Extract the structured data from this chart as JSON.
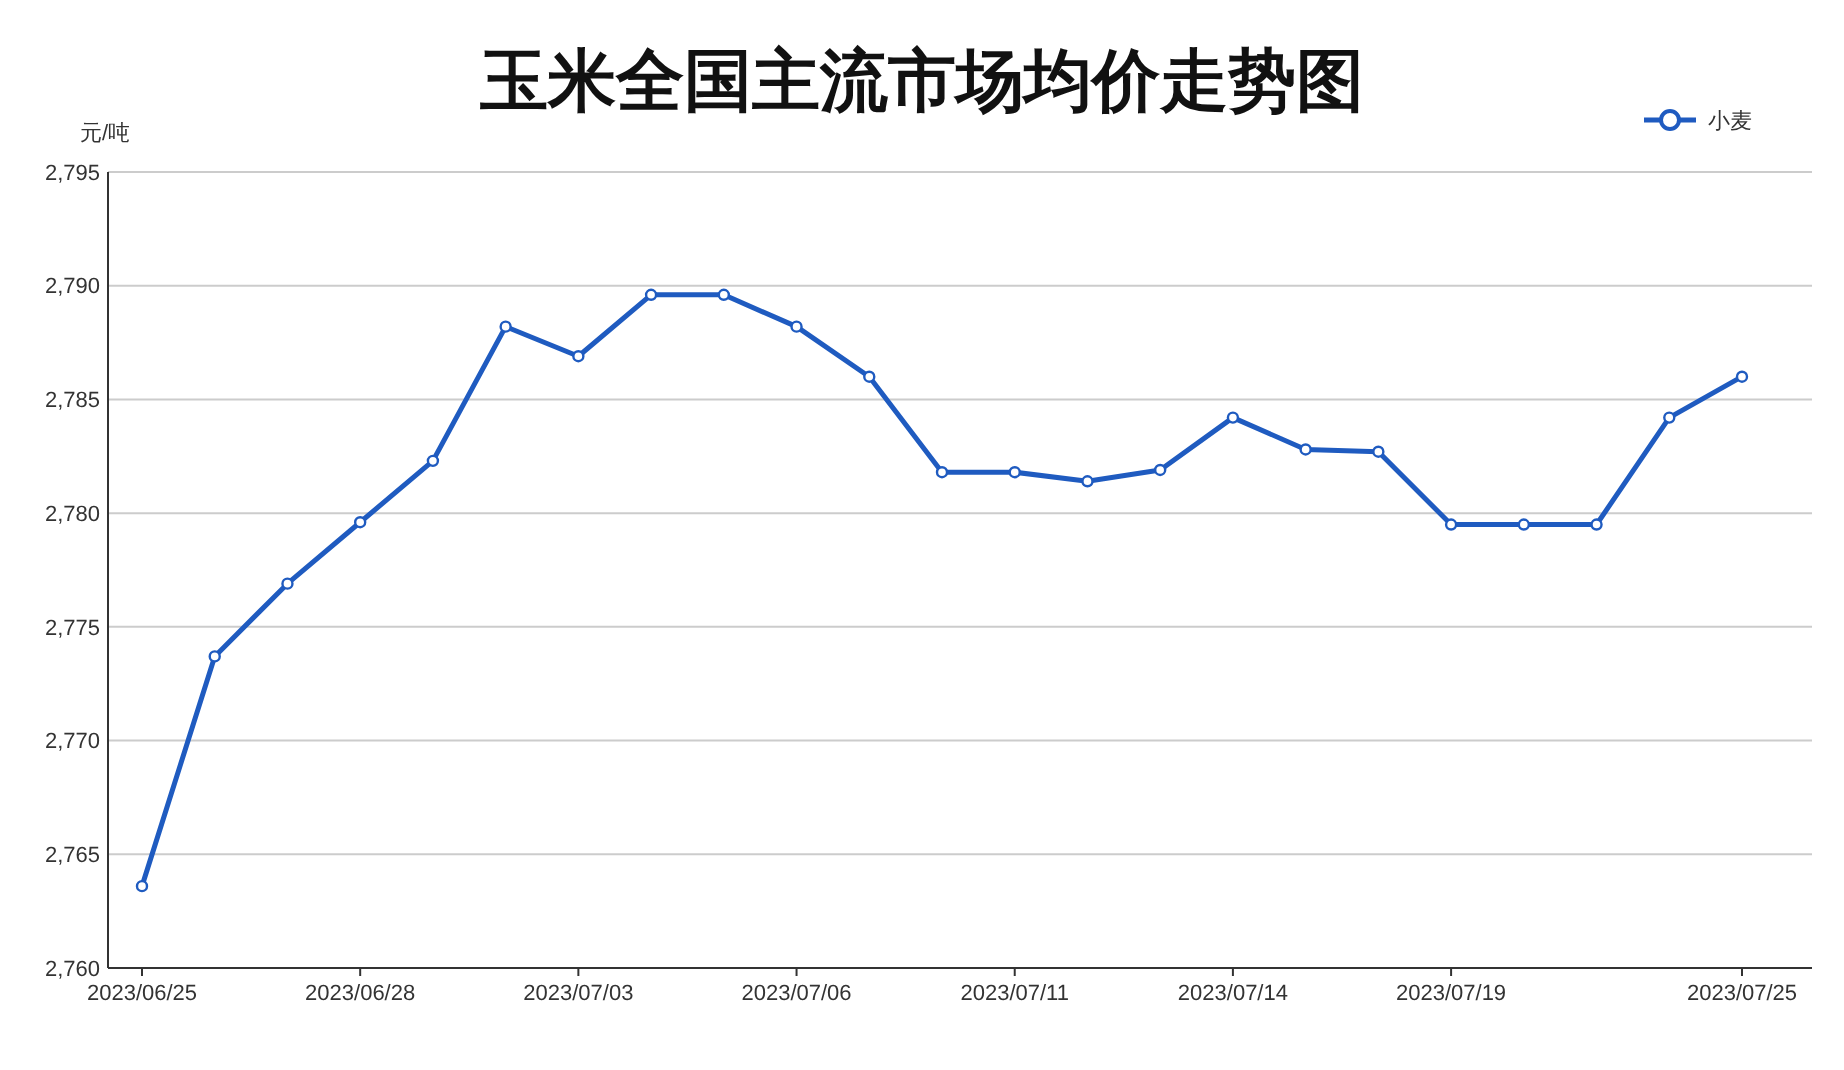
{
  "chart_data": {
    "type": "line",
    "title": "玉米全国主流市场均价走势图",
    "ylabel": "元/吨",
    "categories": [
      "2023/06/25",
      null,
      null,
      "2023/06/28",
      null,
      null,
      "2023/07/03",
      null,
      null,
      "2023/07/06",
      null,
      null,
      "2023/07/11",
      null,
      null,
      "2023/07/14",
      null,
      null,
      "2023/07/19",
      null,
      null,
      null,
      "2023/07/25"
    ],
    "series": [
      {
        "name": "小麦",
        "color": "#1f5bc0",
        "values": [
          2763.6,
          2773.7,
          2776.9,
          2779.6,
          2782.3,
          2788.2,
          2786.9,
          2789.6,
          2789.6,
          2788.2,
          2786.0,
          2781.8,
          2781.8,
          2781.4,
          2781.9,
          2784.2,
          2782.8,
          2782.7,
          2779.5,
          2779.5,
          2779.5,
          2784.2,
          2786.0
        ]
      }
    ],
    "ylim": [
      2760,
      2795
    ],
    "yticks": [
      {
        "value": 2760,
        "label": "2,760"
      },
      {
        "value": 2765,
        "label": "2,765"
      },
      {
        "value": 2770,
        "label": "2,770"
      },
      {
        "value": 2775,
        "label": "2,775"
      },
      {
        "value": 2780,
        "label": "2,780"
      },
      {
        "value": 2785,
        "label": "2,785"
      },
      {
        "value": 2790,
        "label": "2,790"
      },
      {
        "value": 2795,
        "label": "2,795"
      }
    ],
    "grid": "y",
    "legend": "top right",
    "marker": "circle",
    "line_style": "solid"
  }
}
